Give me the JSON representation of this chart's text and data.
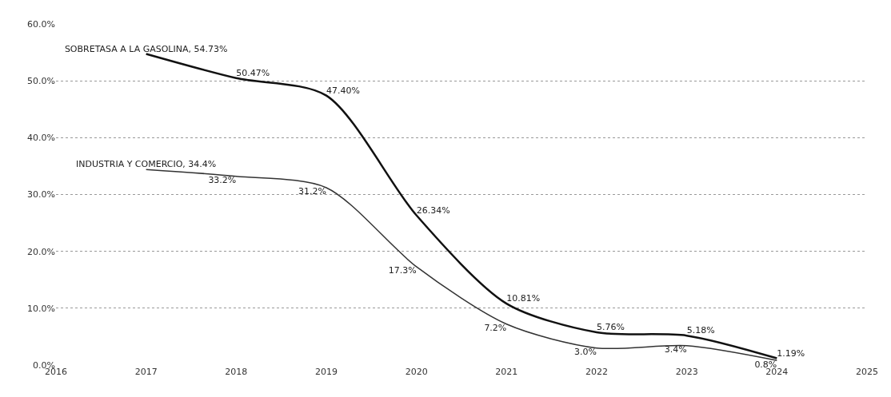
{
  "chart_data": {
    "type": "line",
    "x": [
      2017,
      2018,
      2019,
      2020,
      2021,
      2022,
      2023,
      2024
    ],
    "series": [
      {
        "color": "#111111",
        "values": [
          54.73,
          50.47,
          47.4,
          26.34,
          10.81,
          5.76,
          5.18,
          1.19
        ],
        "value_labels": [
          "SOBRETASA A LA GASOLINA, 54.73%",
          "50.47%",
          "47.40%",
          "26.34%",
          "10.81%",
          "5.76%",
          "5.18%",
          "1.19%"
        ]
      },
      {
        "color": "#333333",
        "values": [
          34.4,
          33.2,
          31.2,
          17.3,
          7.2,
          3.0,
          3.4,
          0.8
        ],
        "value_labels": [
          "INDUSTRIA Y COMERCIO, 34.4%",
          "33.2%",
          "31.2%",
          "17.3%",
          "7.2%",
          "3.0%",
          "3.4%",
          "0.8%"
        ]
      }
    ],
    "xlim": [
      2016,
      2025
    ],
    "xticks": [
      2016,
      2017,
      2018,
      2019,
      2020,
      2021,
      2022,
      2023,
      2024,
      2025
    ],
    "ylim": [
      0,
      60
    ],
    "yticks": [
      {
        "value": 0,
        "label": "0.0%"
      },
      {
        "value": 10,
        "label": "10.0%"
      },
      {
        "value": 20,
        "label": "20.0%"
      },
      {
        "value": 30,
        "label": "30.0%"
      },
      {
        "value": 40,
        "label": "40.0%"
      },
      {
        "value": 50,
        "label": "50.0%"
      },
      {
        "value": 60,
        "label": "60.0%"
      }
    ],
    "grid": "y",
    "legend": false,
    "marker": "none",
    "line_style": "solid"
  }
}
